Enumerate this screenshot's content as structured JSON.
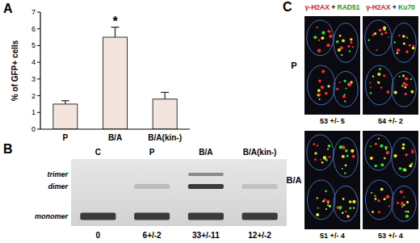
{
  "chart_data": {
    "type": "bar",
    "y_label": "% of GFP+ cells",
    "categories": [
      "P",
      "B/A",
      "B/A(kin-)"
    ],
    "values": [
      1.5,
      5.5,
      1.8
    ],
    "errors": [
      0.2,
      0.6,
      0.4
    ],
    "color": "#f3e4de",
    "ylim": [
      0,
      7
    ],
    "yticks": [
      0,
      1,
      2,
      3,
      4,
      5,
      6,
      7
    ],
    "annotations": [
      {
        "text": "*",
        "category": "B/A"
      }
    ]
  },
  "panel_labels": [
    "A",
    "B",
    "C"
  ],
  "gel": {
    "lanes": [
      "C",
      "P",
      "B/A",
      "B/A(kin-)"
    ],
    "bands": [
      "trimer",
      "dimer",
      "monomer"
    ],
    "quantities": [
      "0",
      "6+/-2",
      "33+/-11",
      "12+/-2"
    ]
  },
  "foci": {
    "columns": [
      [
        "γ-H2AX",
        "+",
        "RAD51"
      ],
      [
        "γ-H2AX",
        "+",
        "Ku70"
      ]
    ],
    "rows": [
      "P",
      "B/A"
    ],
    "counts": [
      [
        "53 +/- 5",
        "54 +/- 2"
      ],
      [
        "51 +/- 4",
        "53 +/- 4"
      ]
    ]
  }
}
